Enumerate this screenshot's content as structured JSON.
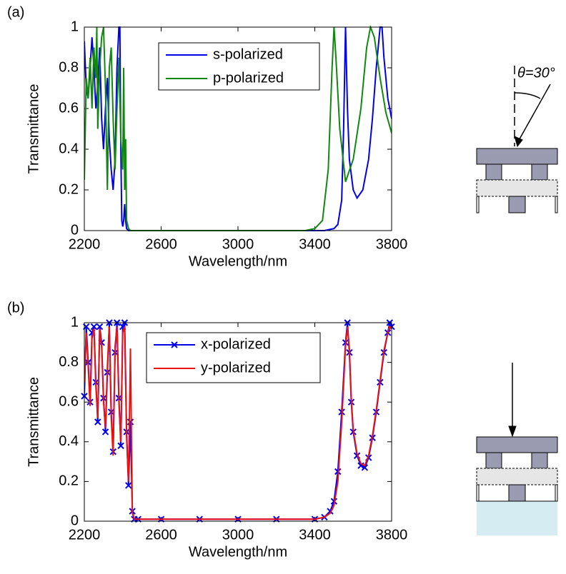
{
  "chart_data": [
    {
      "type": "line",
      "panel_label": "(a)",
      "xlabel": "Wavelength/nm",
      "ylabel": "Transmittance",
      "annotation": "θ=30°",
      "xlim": [
        2200,
        3800
      ],
      "ylim": [
        0,
        1
      ],
      "xticks": [
        2200,
        2600,
        3000,
        3400,
        3800
      ],
      "yticks": [
        0,
        0.2,
        0.4,
        0.6,
        0.8,
        1
      ],
      "series": [
        {
          "name": "s-polarized",
          "color": "#0000ee",
          "x": [
            2200,
            2210,
            2220,
            2230,
            2240,
            2250,
            2260,
            2270,
            2280,
            2290,
            2300,
            2310,
            2320,
            2330,
            2340,
            2350,
            2360,
            2370,
            2380,
            2385,
            2390,
            2395,
            2400,
            2405,
            2410,
            2415,
            2420,
            2430,
            2500,
            3000,
            3450,
            3500,
            3520,
            3540,
            3550,
            3560,
            3570,
            3580,
            3600,
            3620,
            3650,
            3680,
            3700,
            3720,
            3740,
            3750,
            3760,
            3780,
            3800
          ],
          "values": [
            0.93,
            0.7,
            0.65,
            0.8,
            0.95,
            0.8,
            0.6,
            0.72,
            0.9,
            0.55,
            0.4,
            0.6,
            0.75,
            0.45,
            0.3,
            0.2,
            0.35,
            0.8,
            1,
            1,
            0.4,
            0.05,
            0.02,
            0.05,
            0.13,
            0.05,
            0.01,
            0,
            0,
            0,
            0,
            0.01,
            0.03,
            0.15,
            0.5,
            1,
            0.6,
            0.35,
            0.2,
            0.16,
            0.2,
            0.35,
            0.55,
            0.8,
            1,
            1,
            0.85,
            0.65,
            0.55
          ]
        },
        {
          "name": "p-polarized",
          "color": "#118811",
          "x": [
            2200,
            2210,
            2220,
            2230,
            2240,
            2250,
            2260,
            2265,
            2270,
            2280,
            2290,
            2300,
            2310,
            2320,
            2330,
            2340,
            2350,
            2360,
            2370,
            2380,
            2390,
            2400,
            2405,
            2410,
            2415,
            2420,
            2430,
            2440,
            2500,
            3000,
            3350,
            3400,
            3440,
            3470,
            3490,
            3500,
            3510,
            3530,
            3560,
            3600,
            3640,
            3670,
            3690,
            3710,
            3740,
            3770,
            3800
          ],
          "values": [
            0.25,
            0.75,
            0.65,
            0.85,
            0.6,
            0.9,
            0.75,
            1,
            0.5,
            0.8,
            0.95,
            1,
            0.7,
            0.2,
            0.8,
            0.9,
            0.55,
            0.3,
            0.6,
            0.85,
            0.45,
            0.3,
            0.8,
            0.2,
            0.45,
            0.05,
            0.01,
            0,
            0,
            0,
            0,
            0.01,
            0.05,
            0.3,
            0.8,
            1,
            0.85,
            0.5,
            0.24,
            0.35,
            0.6,
            0.9,
            1,
            0.95,
            0.75,
            0.58,
            0.48
          ]
        }
      ]
    },
    {
      "type": "line",
      "panel_label": "(b)",
      "xlabel": "Wavelength/nm",
      "ylabel": "Transmittance",
      "xlim": [
        2200,
        3800
      ],
      "ylim": [
        0,
        1
      ],
      "xticks": [
        2200,
        2600,
        3000,
        3400,
        3800
      ],
      "yticks": [
        0,
        0.2,
        0.4,
        0.6,
        0.8,
        1
      ],
      "x": [
        2200,
        2210,
        2220,
        2230,
        2240,
        2250,
        2260,
        2270,
        2280,
        2290,
        2300,
        2310,
        2320,
        2330,
        2340,
        2350,
        2360,
        2370,
        2380,
        2390,
        2400,
        2410,
        2420,
        2430,
        2440,
        2450,
        2460,
        2480,
        2600,
        2800,
        3000,
        3200,
        3400,
        3450,
        3480,
        3500,
        3520,
        3540,
        3560,
        3570,
        3580,
        3590,
        3600,
        3620,
        3640,
        3660,
        3680,
        3700,
        3720,
        3740,
        3760,
        3780,
        3790,
        3800
      ],
      "series": [
        {
          "name": "x-polarized",
          "color": "#0000ee",
          "marker": "x",
          "values": [
            0.63,
            0.98,
            0.8,
            0.6,
            0.95,
            0.98,
            0.7,
            0.5,
            0.98,
            0.9,
            0.62,
            0.45,
            0.75,
            1,
            0.55,
            0.35,
            0.85,
            1,
            0.62,
            0.38,
            0.98,
            1,
            0.45,
            0.18,
            0.5,
            0.05,
            0.01,
            0.01,
            0.01,
            0.01,
            0.01,
            0.01,
            0.01,
            0.02,
            0.05,
            0.1,
            0.25,
            0.55,
            0.9,
            1,
            0.85,
            0.6,
            0.45,
            0.33,
            0.28,
            0.27,
            0.32,
            0.42,
            0.55,
            0.7,
            0.85,
            0.95,
            1,
            0.98
          ]
        },
        {
          "name": "y-polarized",
          "color": "#ee1111",
          "values": [
            0.7,
            0.95,
            0.78,
            0.58,
            0.92,
            0.97,
            0.68,
            0.52,
            0.97,
            0.88,
            0.6,
            0.47,
            0.78,
            0.98,
            0.52,
            0.33,
            0.88,
            0.98,
            0.6,
            0.4,
            0.95,
            0.98,
            0.42,
            0.2,
            0.87,
            0.04,
            0.01,
            0.01,
            0.01,
            0.01,
            0.01,
            0.01,
            0.01,
            0.02,
            0.04,
            0.08,
            0.2,
            0.5,
            0.88,
            0.98,
            0.87,
            0.62,
            0.46,
            0.34,
            0.29,
            0.28,
            0.33,
            0.43,
            0.56,
            0.71,
            0.86,
            0.95,
            0.98,
            0.97
          ]
        }
      ]
    }
  ]
}
